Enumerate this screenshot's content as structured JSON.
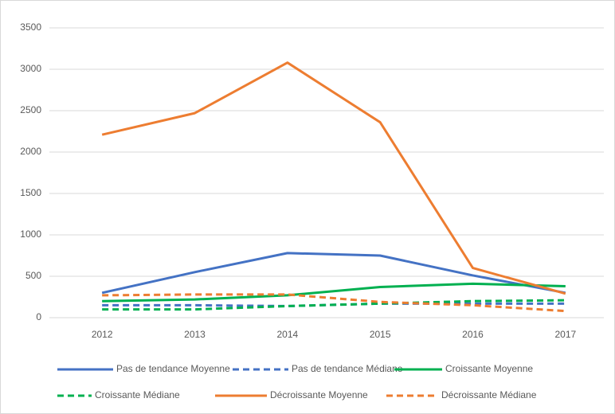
{
  "chart_data": {
    "type": "line",
    "categories": [
      "2012",
      "2013",
      "2014",
      "2015",
      "2016",
      "2017"
    ],
    "series": [
      {
        "name": "Pas de tendance Moyenne",
        "color": "#4472c4",
        "style": "solid",
        "values": [
          300,
          550,
          780,
          750,
          510,
          300
        ]
      },
      {
        "name": "Pas de tendance Médiane",
        "color": "#4472c4",
        "style": "dashed",
        "values": [
          150,
          150,
          140,
          170,
          170,
          170
        ]
      },
      {
        "name": "Croissante Moyenne",
        "color": "#00b050",
        "style": "solid",
        "values": [
          200,
          220,
          270,
          370,
          410,
          380
        ]
      },
      {
        "name": "Croissante Médiane",
        "color": "#00b050",
        "style": "dashed",
        "values": [
          100,
          100,
          140,
          170,
          200,
          210
        ]
      },
      {
        "name": "Décroissante Moyenne",
        "color": "#ed7d31",
        "style": "solid",
        "values": [
          2210,
          2470,
          3080,
          2360,
          600,
          290
        ]
      },
      {
        "name": "Décroissante Médiane",
        "color": "#ed7d31",
        "style": "dashed",
        "values": [
          270,
          280,
          280,
          190,
          150,
          80
        ]
      }
    ],
    "ylim": [
      0,
      3500
    ],
    "yticks": [
      0,
      500,
      1000,
      1500,
      2000,
      2500,
      3000,
      3500
    ],
    "grid": true,
    "legend": "bottom"
  }
}
